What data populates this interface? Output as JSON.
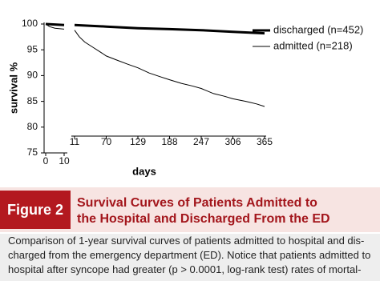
{
  "chart_data": {
    "type": "line",
    "y_label": "survival %",
    "x_label": "days",
    "xlim": [
      0,
      365
    ],
    "x_break": [
      10,
      11
    ],
    "xticks": [
      0,
      10,
      11,
      70,
      129,
      188,
      247,
      306,
      365
    ],
    "ylim": [
      75,
      100
    ],
    "yticks": [
      75,
      80,
      85,
      90,
      95,
      100
    ],
    "legend": "top-right",
    "series": [
      {
        "name": "discharged (n=452)",
        "color": "#000000",
        "width": 3,
        "x": [
          0,
          10,
          11,
          70,
          129,
          188,
          247,
          306,
          365
        ],
        "values": [
          100,
          99.8,
          99.8,
          99.5,
          99.2,
          99,
          98.8,
          98.5,
          98.2
        ]
      },
      {
        "name": "admitted (n=218)",
        "color": "#000000",
        "width": 1,
        "x": [
          0,
          2,
          5,
          10,
          11,
          20,
          30,
          45,
          60,
          70,
          90,
          110,
          129,
          150,
          170,
          188,
          210,
          230,
          247,
          270,
          290,
          306,
          330,
          350,
          365
        ],
        "values": [
          100,
          99.5,
          99.2,
          99,
          98.8,
          97.5,
          96.5,
          95.5,
          94.5,
          93.8,
          93,
          92.2,
          91.5,
          90.5,
          89.8,
          89.2,
          88.5,
          88,
          87.5,
          86.5,
          86,
          85.5,
          85,
          84.5,
          84
        ]
      }
    ]
  },
  "figure": {
    "label": "Figure 2",
    "title": [
      "Survival Curves of Patients Admitted to",
      "the Hospital and Discharged From the ED"
    ]
  },
  "caption": [
    "Comparison of 1-year survival curves of patients admitted to hospital and dis-",
    "charged from the emergency department (ED). Notice that patients admitted to",
    "hospital after syncope had greater (p > 0.0001, log-rank test) rates of mortal-"
  ]
}
